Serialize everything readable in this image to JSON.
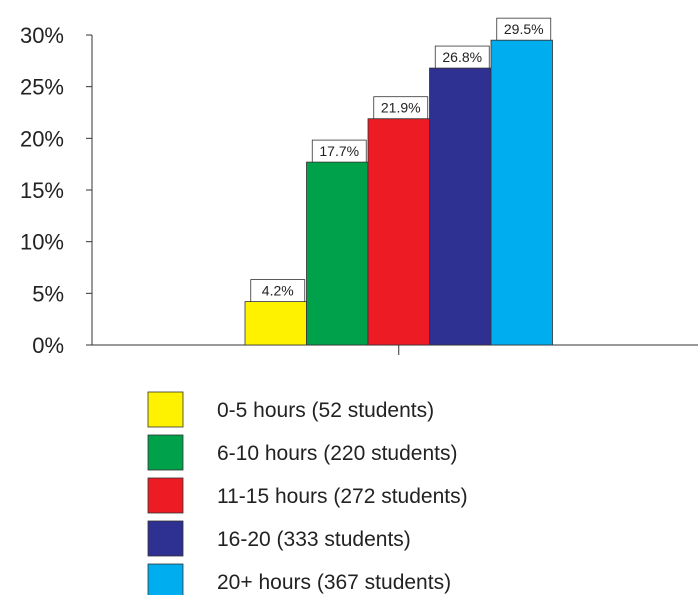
{
  "chart_data": {
    "type": "bar",
    "title": "",
    "xlabel": "",
    "ylabel": "",
    "ylim": [
      0,
      30
    ],
    "y_ticks": [
      0,
      5,
      10,
      15,
      20,
      25,
      30
    ],
    "y_tick_labels": [
      "0%",
      "5%",
      "10%",
      "15%",
      "20%",
      "25%",
      "30%"
    ],
    "grid": false,
    "legend_position": "bottom",
    "series": [
      {
        "name": "0-5 hours (52 students)",
        "value": 4.2,
        "label": "4.2%",
        "color": "#FFF200"
      },
      {
        "name": "6-10 hours (220 students)",
        "value": 17.7,
        "label": "17.7%",
        "color": "#00A14B"
      },
      {
        "name": "11-15 hours (272 students)",
        "value": 21.9,
        "label": "21.9%",
        "color": "#ED1C24"
      },
      {
        "name": "16-20 (333 students)",
        "value": 26.8,
        "label": "26.8%",
        "color": "#2E3192"
      },
      {
        "name": "20+ hours (367 students)",
        "value": 29.5,
        "label": "29.5%",
        "color": "#00AEEF"
      }
    ]
  }
}
